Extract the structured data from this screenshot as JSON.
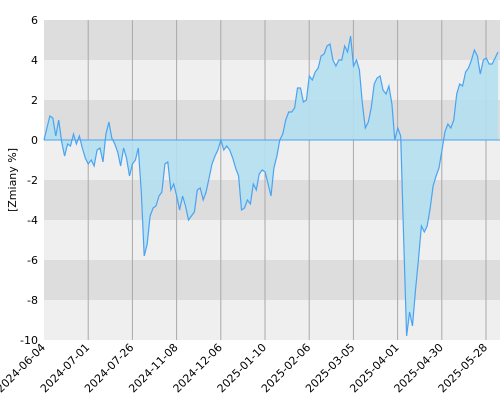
{
  "chart_data": {
    "type": "area",
    "ylabel": "[Zmiany %]",
    "ylim": [
      -10,
      6
    ],
    "yticks": [
      -10,
      -8,
      -6,
      -4,
      -2,
      0,
      2,
      4,
      6
    ],
    "xticks": [
      "2024-06-04",
      "2024-07-01",
      "2024-07-26",
      "2024-11-08",
      "2024-12-06",
      "2025-01-10",
      "2025-02-06",
      "2025-03-05",
      "2025-04-01",
      "2025-04-30",
      "2025-05-28"
    ],
    "grid": true,
    "colors": {
      "line": "#4aa3f0",
      "fill": "#b3dff0",
      "band_dark": "#dddddd",
      "band_light": "#efefef",
      "vgrid": "#a9a9a9"
    },
    "series": [
      {
        "values": [
          0.0,
          0.6,
          1.2,
          1.1,
          0.2,
          1.0,
          -0.1,
          -0.8,
          -0.2,
          -0.3,
          0.3,
          -0.2,
          0.2,
          -0.4,
          -0.9,
          -1.2,
          -1.0,
          -1.3,
          -0.5,
          -0.4,
          -1.1,
          0.3,
          0.9,
          0.1,
          -0.2,
          -0.6,
          -1.3,
          -0.4,
          -0.9,
          -1.8,
          -1.2,
          -1.0,
          -0.4,
          -2.6,
          -5.8,
          -5.2,
          -3.8,
          -3.4,
          -3.3,
          -2.8,
          -2.6,
          -1.2,
          -1.1,
          -2.5,
          -2.2,
          -2.8,
          -3.5,
          -2.8,
          -3.3,
          -4.0,
          -3.8,
          -3.6,
          -2.5,
          -2.4,
          -3.0,
          -2.6,
          -1.9,
          -1.2,
          -0.8,
          -0.5,
          0.0,
          -0.5,
          -0.3,
          -0.5,
          -0.9,
          -1.4,
          -1.8,
          -3.5,
          -3.4,
          -3.0,
          -3.2,
          -2.2,
          -2.5,
          -1.7,
          -1.5,
          -1.6,
          -2.2,
          -2.8,
          -1.4,
          -0.8,
          0.0,
          0.3,
          1.0,
          1.4,
          1.4,
          1.6,
          2.6,
          2.6,
          1.9,
          2.0,
          3.2,
          3.0,
          3.4,
          3.6,
          4.2,
          4.3,
          4.7,
          4.8,
          4.0,
          3.7,
          4.0,
          4.0,
          4.7,
          4.4,
          5.2,
          3.7,
          4.0,
          3.5,
          1.8,
          0.6,
          0.9,
          1.6,
          2.8,
          3.1,
          3.2,
          2.5,
          2.3,
          2.7,
          1.8,
          0.0,
          0.6,
          0.2,
          -5.0,
          -9.8,
          -8.6,
          -9.3,
          -7.5,
          -6.0,
          -4.3,
          -4.6,
          -4.3,
          -3.4,
          -2.3,
          -1.8,
          -1.4,
          -0.5,
          0.4,
          0.8,
          0.6,
          1.0,
          2.3,
          2.8,
          2.7,
          3.4,
          3.6,
          4.0,
          4.5,
          4.2,
          3.3,
          4.0,
          4.1,
          3.8,
          3.8,
          4.1,
          4.4
        ]
      }
    ]
  }
}
